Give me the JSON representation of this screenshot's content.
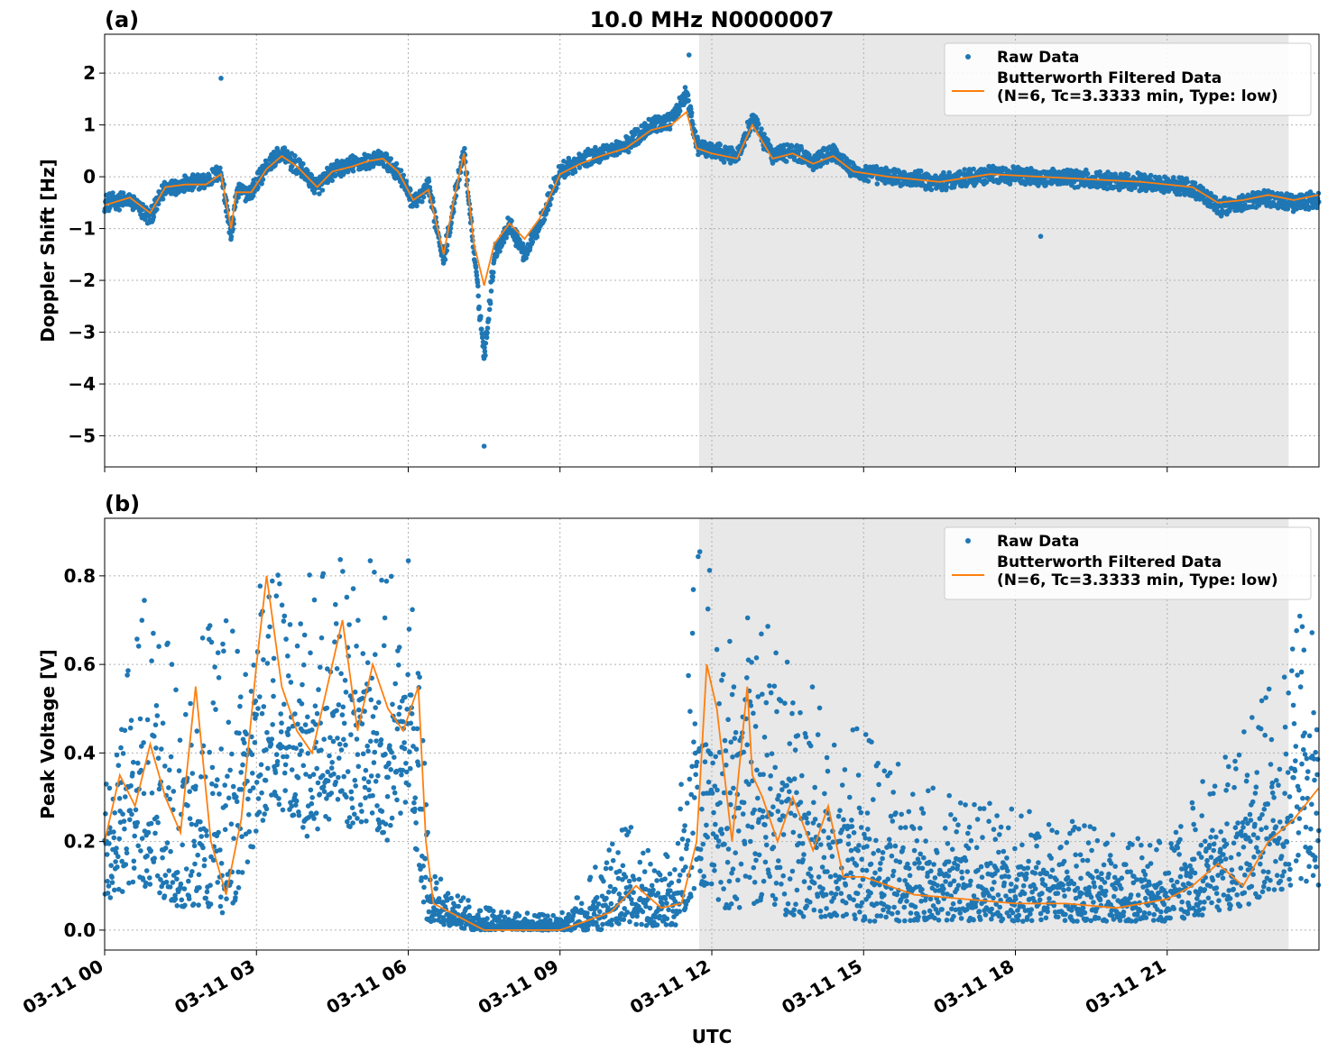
{
  "chart_data": [
    {
      "type": "scatter",
      "panel_label": "(a)",
      "title": "10.0 MHz N0000007",
      "ylabel": "Doppler Shift [Hz]",
      "ylim": [
        -5.6,
        2.75
      ],
      "yticks": [
        2,
        1,
        0,
        -1,
        -2,
        -3,
        -4,
        -5
      ],
      "ytick_labels": [
        "2",
        "1",
        "0",
        "−1",
        "−2",
        "−3",
        "−4",
        "−5"
      ],
      "grid": true,
      "legend_position": "top-right",
      "shaded_region": {
        "x_start_hours": 11.75,
        "x_end_hours": 23.4,
        "color": "#e8e8e8"
      },
      "series": [
        {
          "name": "Raw Data",
          "kind": "scatter",
          "color": "#1f77b4",
          "x_hours": [
            0,
            0.5,
            0.9,
            1.2,
            1.6,
            2.0,
            2.3,
            2.5,
            2.6,
            2.9,
            3.2,
            3.5,
            3.8,
            4.2,
            4.5,
            4.9,
            5.2,
            5.5,
            5.8,
            6.1,
            6.4,
            6.7,
            6.9,
            7.1,
            7.3,
            7.5,
            7.7,
            8.0,
            8.3,
            8.6,
            9.0,
            9.4,
            9.8,
            10.3,
            10.8,
            11.2,
            11.5,
            11.7,
            12.0,
            12.5,
            12.8,
            13.2,
            13.6,
            14.0,
            14.4,
            14.8,
            15.5,
            16.5,
            17.5,
            18.5,
            19.5,
            20.5,
            21.5,
            22.0,
            22.5,
            23.0,
            23.5,
            23.99
          ],
          "values": [
            -0.5,
            -0.45,
            -0.8,
            -0.2,
            -0.15,
            -0.1,
            0.1,
            -1.2,
            -0.3,
            -0.3,
            0.2,
            0.45,
            0.2,
            -0.2,
            0.1,
            0.25,
            0.3,
            0.35,
            0.1,
            -0.5,
            -0.2,
            -1.6,
            -0.5,
            0.5,
            -1.5,
            -3.5,
            -1.5,
            -0.9,
            -1.5,
            -0.9,
            0.1,
            0.3,
            0.45,
            0.6,
            1.0,
            1.1,
            1.6,
            0.6,
            0.5,
            0.4,
            1.1,
            0.4,
            0.5,
            0.3,
            0.5,
            0.1,
            0.0,
            -0.1,
            0.05,
            0.0,
            -0.05,
            -0.1,
            -0.2,
            -0.6,
            -0.5,
            -0.4,
            -0.5,
            -0.45
          ],
          "extremes": [
            {
              "x_hours": 2.3,
              "value": 1.9
            },
            {
              "x_hours": 7.5,
              "value": -5.2
            },
            {
              "x_hours": 11.55,
              "value": 2.35
            },
            {
              "x_hours": 18.5,
              "value": -1.15
            }
          ]
        },
        {
          "name": "Butterworth Filtered Data\n(N=6, Tc=3.3333 min, Type: low)",
          "kind": "line",
          "color": "#ff7f0e",
          "x_hours": [
            0,
            0.5,
            0.9,
            1.2,
            1.6,
            2.0,
            2.3,
            2.5,
            2.6,
            2.9,
            3.2,
            3.5,
            3.8,
            4.2,
            4.5,
            4.9,
            5.2,
            5.5,
            5.8,
            6.1,
            6.4,
            6.7,
            6.9,
            7.1,
            7.3,
            7.5,
            7.7,
            8.0,
            8.3,
            8.6,
            9.0,
            9.4,
            9.8,
            10.3,
            10.8,
            11.2,
            11.5,
            11.7,
            12.0,
            12.5,
            12.8,
            13.2,
            13.6,
            14.0,
            14.4,
            14.8,
            15.5,
            16.5,
            17.5,
            18.5,
            19.5,
            20.5,
            21.5,
            22.0,
            22.5,
            23.0,
            23.5,
            23.99
          ],
          "values": [
            -0.55,
            -0.4,
            -0.7,
            -0.2,
            -0.15,
            -0.15,
            0.05,
            -1.0,
            -0.3,
            -0.3,
            0.15,
            0.4,
            0.2,
            -0.2,
            0.1,
            0.2,
            0.3,
            0.35,
            0.1,
            -0.45,
            -0.25,
            -1.5,
            -0.45,
            0.45,
            -1.3,
            -2.1,
            -1.3,
            -0.9,
            -1.2,
            -0.8,
            0.05,
            0.25,
            0.4,
            0.55,
            0.9,
            1.0,
            1.25,
            0.55,
            0.45,
            0.35,
            1.0,
            0.35,
            0.45,
            0.25,
            0.4,
            0.1,
            0.0,
            -0.1,
            0.05,
            0.0,
            -0.05,
            -0.1,
            -0.2,
            -0.5,
            -0.45,
            -0.35,
            -0.45,
            -0.35
          ]
        }
      ]
    },
    {
      "type": "scatter",
      "panel_label": "(b)",
      "title": "",
      "xlabel": "UTC",
      "ylabel": "Peak Voltage [V]",
      "ylim": [
        -0.045,
        0.93
      ],
      "yticks": [
        0.0,
        0.2,
        0.4,
        0.6,
        0.8
      ],
      "ytick_labels": [
        "0.0",
        "0.2",
        "0.4",
        "0.6",
        "0.8"
      ],
      "xlim_hours": [
        0,
        24
      ],
      "xticks_hours": [
        0,
        3,
        6,
        9,
        12,
        15,
        18,
        21
      ],
      "xtick_labels": [
        "03-11 00",
        "03-11 03",
        "03-11 06",
        "03-11 09",
        "03-11 12",
        "03-11 15",
        "03-11 18",
        "03-11 21"
      ],
      "grid": true,
      "legend_position": "top-right",
      "shaded_region": {
        "x_start_hours": 11.75,
        "x_end_hours": 23.4,
        "color": "#e8e8e8"
      },
      "series": [
        {
          "name": "Raw Data",
          "kind": "scatter",
          "color": "#1f77b4",
          "x_hours": [
            0,
            0.5,
            1.0,
            1.5,
            2.0,
            2.4,
            2.7,
            3.0,
            3.3,
            3.6,
            4.0,
            4.4,
            4.8,
            5.2,
            5.6,
            6.0,
            6.35,
            6.4,
            6.8,
            7.3,
            8.0,
            9.0,
            9.8,
            10.3,
            10.8,
            11.3,
            11.7,
            11.9,
            12.2,
            12.6,
            13.0,
            13.5,
            14.0,
            14.5,
            15.0,
            16.0,
            17.0,
            18.0,
            19.0,
            20.0,
            21.0,
            21.5,
            22.0,
            22.5,
            23.0,
            23.5,
            23.99
          ],
          "low": [
            0.05,
            0.1,
            0.08,
            0.05,
            0.05,
            0.02,
            0.1,
            0.2,
            0.3,
            0.25,
            0.2,
            0.25,
            0.2,
            0.25,
            0.2,
            0.3,
            0.02,
            0.02,
            0.01,
            0.0,
            0.0,
            0.0,
            0.0,
            0.01,
            0.01,
            0.01,
            0.1,
            0.1,
            0.05,
            0.05,
            0.05,
            0.03,
            0.03,
            0.03,
            0.02,
            0.02,
            0.02,
            0.02,
            0.02,
            0.02,
            0.02,
            0.03,
            0.04,
            0.05,
            0.08,
            0.1,
            0.1
          ],
          "high": [
            0.45,
            0.7,
            0.8,
            0.6,
            0.8,
            0.7,
            0.75,
            0.88,
            0.85,
            0.75,
            0.87,
            0.8,
            0.87,
            0.85,
            0.8,
            0.86,
            0.45,
            0.15,
            0.1,
            0.06,
            0.04,
            0.04,
            0.16,
            0.26,
            0.18,
            0.2,
            0.88,
            0.85,
            0.8,
            0.87,
            0.7,
            0.65,
            0.55,
            0.5,
            0.45,
            0.35,
            0.3,
            0.28,
            0.25,
            0.22,
            0.2,
            0.3,
            0.4,
            0.45,
            0.55,
            0.7,
            0.75
          ]
        },
        {
          "name": "Butterworth Filtered Data\n(N=6, Tc=3.3333 min, Type: low)",
          "kind": "line",
          "color": "#ff7f0e",
          "x_hours": [
            0,
            0.3,
            0.6,
            0.9,
            1.2,
            1.5,
            1.8,
            2.1,
            2.4,
            2.7,
            3.0,
            3.2,
            3.5,
            3.8,
            4.1,
            4.4,
            4.7,
            5.0,
            5.3,
            5.6,
            5.9,
            6.2,
            6.35,
            6.5,
            7.0,
            7.5,
            8.0,
            9.0,
            9.5,
            10.0,
            10.5,
            11.0,
            11.4,
            11.7,
            11.9,
            12.1,
            12.4,
            12.7,
            12.8,
            13.0,
            13.3,
            13.6,
            14.0,
            14.3,
            14.6,
            15.0,
            15.5,
            16.0,
            17.0,
            18.0,
            19.0,
            20.0,
            21.0,
            21.5,
            22.0,
            22.5,
            23.0,
            23.5,
            23.99
          ],
          "values": [
            0.2,
            0.35,
            0.28,
            0.42,
            0.3,
            0.22,
            0.55,
            0.2,
            0.08,
            0.25,
            0.6,
            0.8,
            0.55,
            0.45,
            0.4,
            0.55,
            0.7,
            0.45,
            0.6,
            0.5,
            0.45,
            0.55,
            0.2,
            0.06,
            0.03,
            0.0,
            0.0,
            0.0,
            0.02,
            0.04,
            0.1,
            0.05,
            0.06,
            0.2,
            0.6,
            0.5,
            0.2,
            0.55,
            0.35,
            0.3,
            0.2,
            0.3,
            0.18,
            0.28,
            0.12,
            0.12,
            0.1,
            0.08,
            0.07,
            0.06,
            0.06,
            0.05,
            0.07,
            0.1,
            0.15,
            0.1,
            0.2,
            0.25,
            0.32
          ]
        }
      ]
    }
  ]
}
